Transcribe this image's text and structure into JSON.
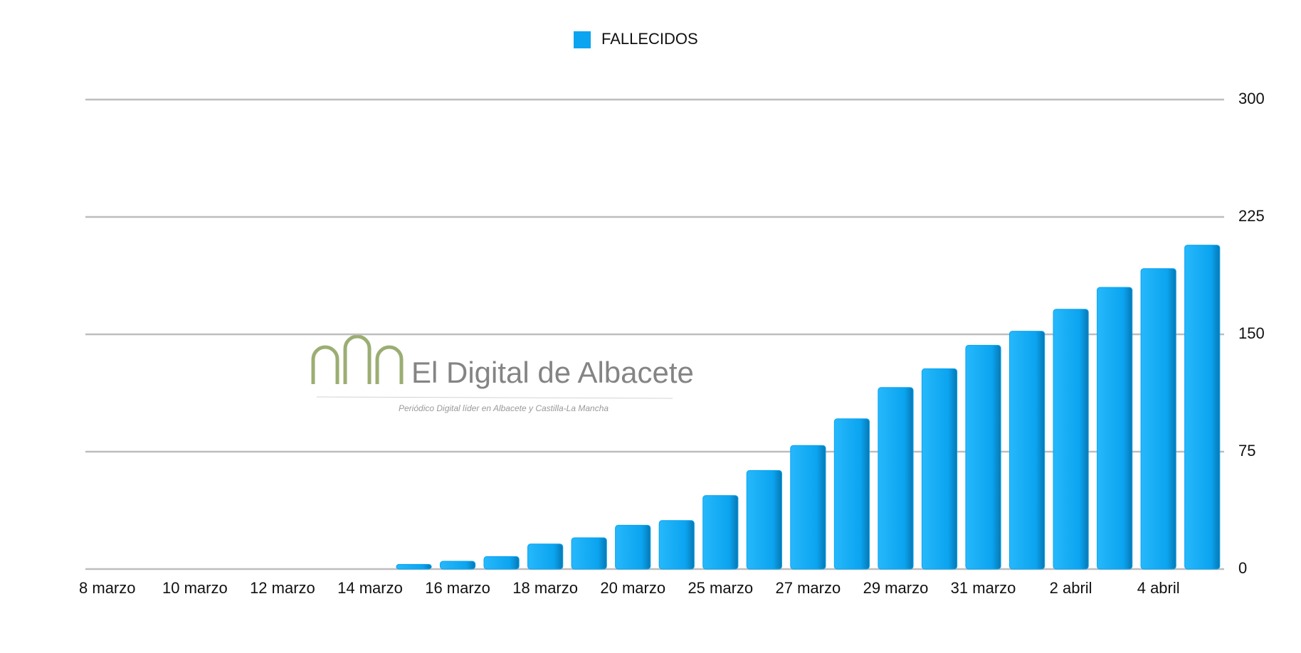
{
  "chart_data": {
    "type": "bar",
    "series": [
      {
        "name": "FALLECIDOS",
        "color": "#0ba4f0",
        "values": [
          0,
          0,
          0,
          0,
          0,
          0,
          0,
          3,
          5,
          8,
          16,
          20,
          28,
          31,
          47,
          63,
          79,
          96,
          116,
          128,
          143,
          152,
          166,
          180,
          192,
          207
        ]
      }
    ],
    "categories": [
      "8 marzo",
      null,
      "10 marzo",
      null,
      "12 marzo",
      null,
      "14 marzo",
      null,
      "16 marzo",
      null,
      "18 marzo",
      null,
      "20 marzo",
      null,
      "25 marzo",
      null,
      "27 marzo",
      null,
      "29 marzo",
      null,
      "31 marzo",
      null,
      "2 abril",
      null,
      "4 abril",
      null
    ],
    "ylim": [
      0,
      300
    ],
    "yticks": [
      0,
      75,
      150,
      225,
      300
    ],
    "grid": true,
    "legend": "top"
  },
  "watermark": {
    "title": "El Digital de Albacete",
    "subtitle": "Periódico Digital líder en Albacete y Castilla-La Mancha"
  }
}
